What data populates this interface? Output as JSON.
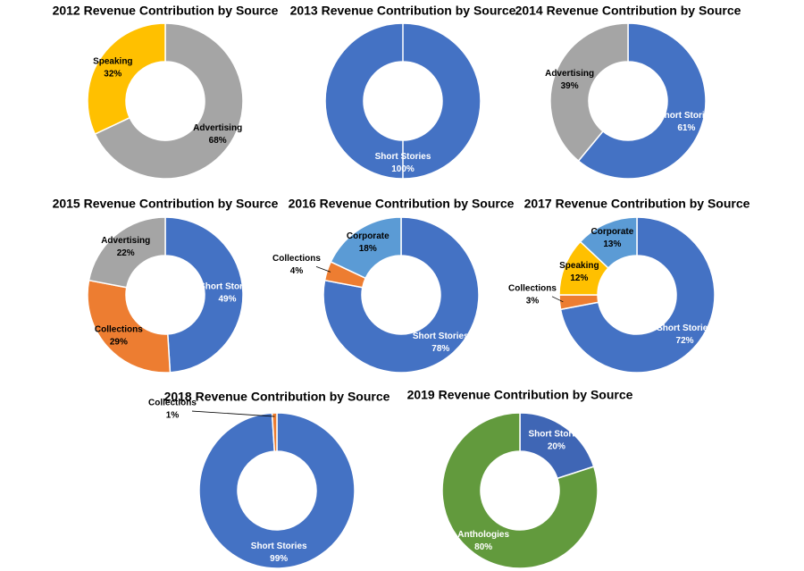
{
  "chart_data": [
    {
      "type": "pie",
      "title": "2012 Revenue Contribution by Source",
      "categories": [
        "Advertising",
        "Speaking"
      ],
      "values": [
        68,
        32
      ],
      "value_labels": [
        "68%",
        "32%"
      ],
      "colors": [
        "#a5a5a5",
        "#ffc000"
      ]
    },
    {
      "type": "pie",
      "title": "2013 Revenue Contribution by Source",
      "categories": [
        "Short Stories"
      ],
      "values": [
        100
      ],
      "value_labels": [
        "100%"
      ],
      "colors": [
        "#4472c4"
      ]
    },
    {
      "type": "pie",
      "title": "2014 Revenue Contribution by Source",
      "categories": [
        "Short Stories",
        "Advertising"
      ],
      "values": [
        61,
        39
      ],
      "value_labels": [
        "61%",
        "39%"
      ],
      "colors": [
        "#4472c4",
        "#a5a5a5"
      ]
    },
    {
      "type": "pie",
      "title": "2015 Revenue Contribution by Source",
      "categories": [
        "Short Stories",
        "Collections",
        "Advertising"
      ],
      "values": [
        49,
        29,
        22
      ],
      "value_labels": [
        "49%",
        "29%",
        "22%"
      ],
      "colors": [
        "#4472c4",
        "#ed7d31",
        "#a5a5a5"
      ]
    },
    {
      "type": "pie",
      "title": "2016 Revenue Contribution by Source",
      "categories": [
        "Short Stories",
        "Collections",
        "Corporate"
      ],
      "values": [
        78,
        4,
        18
      ],
      "value_labels": [
        "78%",
        "4%",
        "18%"
      ],
      "colors": [
        "#4472c4",
        "#ed7d31",
        "#5b9bd5"
      ]
    },
    {
      "type": "pie",
      "title": "2017 Revenue Contribution by Source",
      "categories": [
        "Short Stories",
        "Collections",
        "Speaking",
        "Corporate"
      ],
      "values": [
        72,
        3,
        12,
        13
      ],
      "value_labels": [
        "72%",
        "3%",
        "12%",
        "13%"
      ],
      "colors": [
        "#4472c4",
        "#ed7d31",
        "#ffc000",
        "#5b9bd5"
      ]
    },
    {
      "type": "pie",
      "title": "2018 Revenue Contribution by Source",
      "categories": [
        "Short Stories",
        "Collections"
      ],
      "values": [
        99,
        1
      ],
      "value_labels": [
        "99%",
        "1%"
      ],
      "colors": [
        "#4472c4",
        "#ed7d31"
      ]
    },
    {
      "type": "pie",
      "title": "2019 Revenue Contribution by Source",
      "categories": [
        "Short Stories",
        "Anthologies"
      ],
      "values": [
        20,
        80
      ],
      "value_labels": [
        "20%",
        "80%"
      ],
      "colors": [
        "#3f66b5",
        "#629a3d"
      ]
    }
  ]
}
